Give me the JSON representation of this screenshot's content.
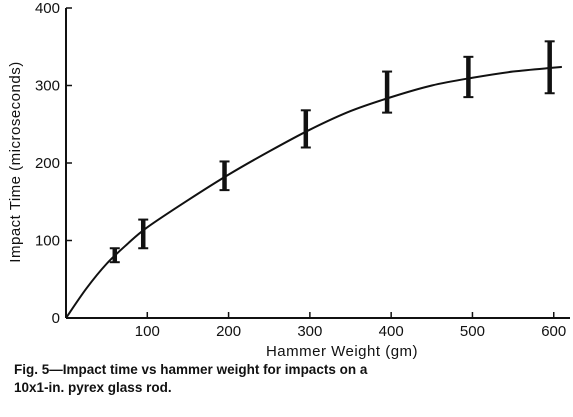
{
  "chart_data": {
    "type": "line",
    "title": "",
    "xlabel": "Hammer Weight (gm)",
    "ylabel": "Impact Time (microseconds)",
    "xlim": [
      0,
      620
    ],
    "ylim": [
      0,
      400
    ],
    "x_ticks": [
      100,
      200,
      300,
      400,
      500,
      600
    ],
    "y_ticks": [
      0,
      100,
      200,
      300,
      400
    ],
    "grid": false,
    "curve": {
      "x": [
        0,
        25,
        50,
        75,
        100,
        150,
        200,
        250,
        300,
        350,
        400,
        450,
        500,
        550,
        600,
        610
      ],
      "y": [
        0,
        38,
        70,
        95,
        117,
        152,
        185,
        215,
        243,
        267,
        285,
        300,
        310,
        318,
        323,
        324
      ]
    },
    "error_bars": [
      {
        "x": 60,
        "y": 80,
        "low": 72,
        "high": 90
      },
      {
        "x": 95,
        "y": 108,
        "low": 90,
        "high": 127
      },
      {
        "x": 195,
        "y": 183,
        "low": 165,
        "high": 202
      },
      {
        "x": 295,
        "y": 243,
        "low": 220,
        "high": 268
      },
      {
        "x": 395,
        "y": 290,
        "low": 265,
        "high": 318
      },
      {
        "x": 495,
        "y": 310,
        "low": 285,
        "high": 337
      },
      {
        "x": 595,
        "y": 322,
        "low": 290,
        "high": 357
      }
    ]
  },
  "caption": {
    "line1": "Fig. 5—Impact time vs hammer weight for impacts on a",
    "line2": "10x1-in. pyrex glass rod."
  }
}
